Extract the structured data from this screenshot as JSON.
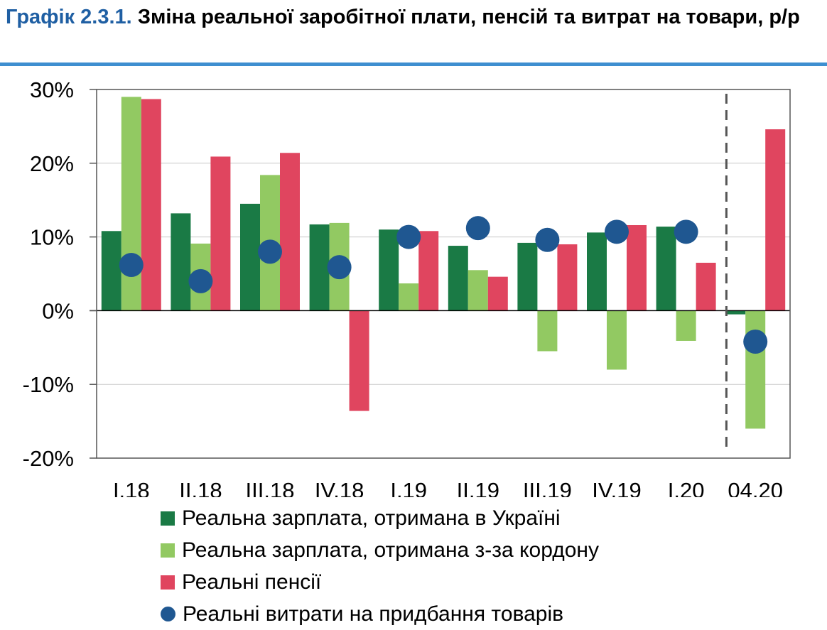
{
  "title": {
    "prefix": "Графік 2.3.1.",
    "text": "Зміна реальної заробітної плати, пенсій та витрат на товари, р/р"
  },
  "colors": {
    "dark_green": "#1a7a45",
    "light_green": "#92c962",
    "pink": "#e0455f",
    "navy": "#1f5791",
    "rule": "#3e8fd0",
    "title_accent": "#1f5fa3"
  },
  "chart_data": {
    "type": "bar",
    "categories": [
      "I.18",
      "II.18",
      "III.18",
      "IV.18",
      "I.19",
      "II.19",
      "III.19",
      "IV.19",
      "I.20",
      "04.20"
    ],
    "ylim": [
      -20,
      30
    ],
    "yticks": [
      -20,
      -10,
      0,
      10,
      20,
      30
    ],
    "ytick_labels": [
      "-20%",
      "-10%",
      "0%",
      "10%",
      "20%",
      "30%"
    ],
    "grid": true,
    "divider_before_category": "04.20",
    "series": [
      {
        "name": "Реальна зарплата, отримана в Україні",
        "type": "bar",
        "color": "#1a7a45",
        "values": [
          10.8,
          13.2,
          14.5,
          11.7,
          11.0,
          8.8,
          9.2,
          10.6,
          11.4,
          -0.5
        ]
      },
      {
        "name": "Реальна зарплата, отримана з-за кордону",
        "type": "bar",
        "color": "#92c962",
        "values": [
          29.0,
          9.1,
          18.4,
          11.9,
          3.7,
          5.5,
          -5.5,
          -8.0,
          -4.1,
          -16.0
        ]
      },
      {
        "name": "Реальні пенсії",
        "type": "bar",
        "color": "#e0455f",
        "values": [
          28.7,
          20.9,
          21.4,
          null,
          10.8,
          4.6,
          9.0,
          11.6,
          6.5,
          24.6
        ]
      },
      {
        "name": "Реальні витрати на придбання товарів",
        "type": "marker",
        "color": "#1f5791",
        "values": [
          6.2,
          4.0,
          8.0,
          5.9,
          10.0,
          11.2,
          9.6,
          10.7,
          10.7,
          -4.2
        ]
      }
    ],
    "pink_negative": {
      "category": "IV.18",
      "value": -13.6
    }
  },
  "legend": [
    {
      "label": "Реальна зарплата, отримана в Україні",
      "color": "#1a7a45",
      "shape": "square"
    },
    {
      "label": "Реальна зарплата, отримана з-за кордону",
      "color": "#92c962",
      "shape": "square"
    },
    {
      "label": "Реальні пенсії",
      "color": "#e0455f",
      "shape": "square"
    },
    {
      "label": "Реальні витрати на придбання товарів",
      "color": "#1f5791",
      "shape": "circle"
    }
  ]
}
